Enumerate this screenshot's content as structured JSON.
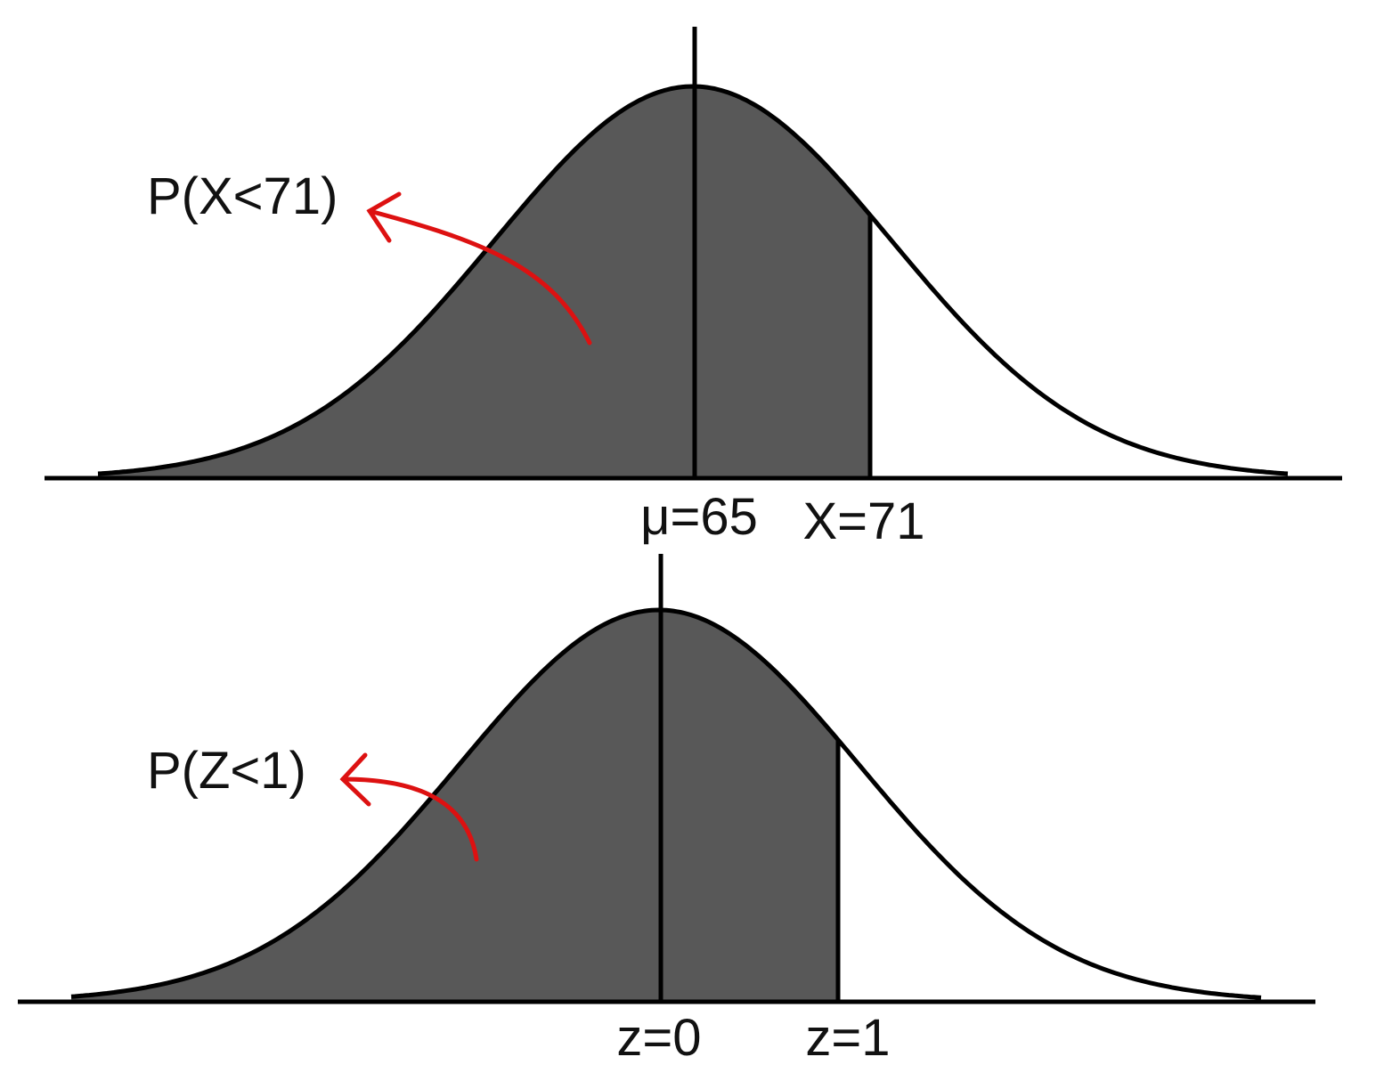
{
  "panels": [
    {
      "region_label": "P(X<71)",
      "center_label": "μ=65",
      "bound_label": "X=71"
    },
    {
      "region_label": "P(Z<1)",
      "center_label": "z=0",
      "bound_label": "z=1"
    }
  ]
}
